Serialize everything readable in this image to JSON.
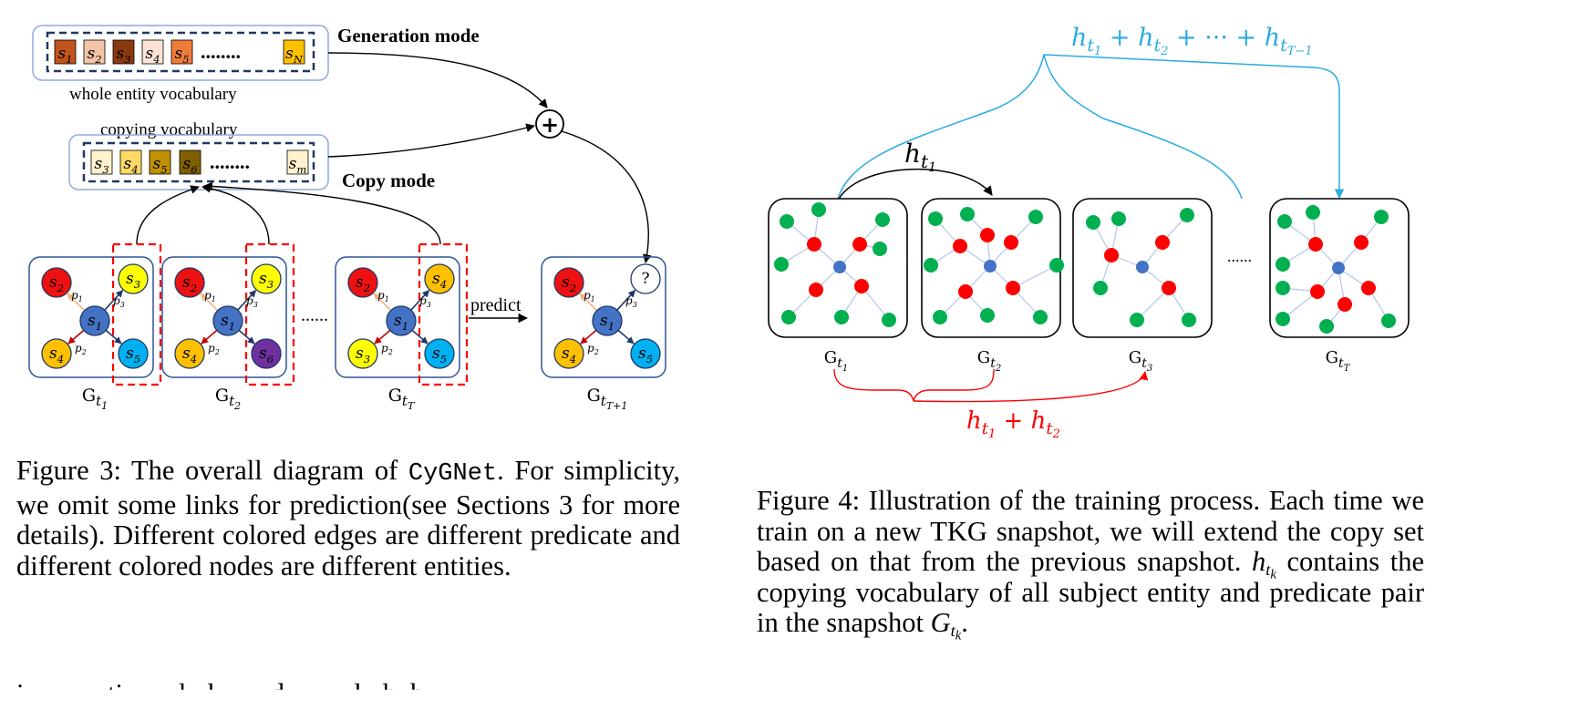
{
  "figure3": {
    "generation_mode": "Generation mode",
    "copy_mode": "Copy mode",
    "whole_vocab": "whole entity vocabulary",
    "copy_vocab": "copying vocabulary",
    "gen_tokens": [
      "s1",
      "s2",
      "s3",
      "s4",
      "s5",
      "sN"
    ],
    "gen_colors": [
      "#c0541c",
      "#f4c4a6",
      "#8a3a10",
      "#fbe4d5",
      "#ee7c3a",
      "#ffc000"
    ],
    "copy_tokens": [
      "s3",
      "s4",
      "s5",
      "s6",
      "sm"
    ],
    "copy_colors": [
      "#fff2cc",
      "#ffd966",
      "#bf9000",
      "#7f6000",
      "#fff2cc"
    ],
    "dots": "........",
    "plus": "+",
    "predict": "predict",
    "ellipsis": "......",
    "question": "?",
    "snapshots": [
      {
        "label": "G",
        "sub": "t1",
        "top": "s2",
        "right": "s3",
        "bl": "s4",
        "br": "s5",
        "top_color": "#ee1111",
        "right_color": "#ffff00",
        "bl_color": "#ffc000",
        "br_color": "#00b0f0"
      },
      {
        "label": "G",
        "sub": "t2",
        "top": "s2",
        "right": "s3",
        "bl": "s4",
        "br": "s6",
        "top_color": "#ee1111",
        "right_color": "#ffff00",
        "bl_color": "#ffc000",
        "br_color": "#7030a0"
      },
      {
        "label": "G",
        "sub": "tT",
        "top": "s2",
        "right": "s4",
        "bl": "s3",
        "br": "s5",
        "top_color": "#ee1111",
        "right_color": "#ffc000",
        "bl_color": "#ffff00",
        "br_color": "#00b0f0"
      },
      {
        "label": "G",
        "sub": "tT+1",
        "top": "s2",
        "right": "?",
        "bl": "s4",
        "br": "s5",
        "top_color": "#ee1111",
        "right_color": "#ffffff",
        "bl_color": "#ffc000",
        "br_color": "#00b0f0"
      }
    ],
    "center_node": "s1",
    "pred_labels": [
      "p1",
      "p3",
      "p2"
    ],
    "caption_prefix": "Figure 3: The overall diagram of ",
    "caption_mono": "CyGNet",
    "caption_rest": ". For simplicity, we omit some links for prediction(see Sections 3 for more details). Different colored edges are different predicate and different colored nodes are different entities."
  },
  "figure4": {
    "top_sum": "h_t1 + h_t2 + ··· + h_tT−1",
    "top_sum_parts": [
      "h",
      "t",
      "1",
      " + ",
      "h",
      "t",
      "2",
      " + ··· + ",
      "h",
      "t",
      "T−1"
    ],
    "h_t1": "h_t1",
    "bottom_sum": "h_t1 + h_t2",
    "ellipsis": "......",
    "snapshots": [
      {
        "label": "G",
        "sub": "t1"
      },
      {
        "label": "G",
        "sub": "t2"
      },
      {
        "label": "G",
        "sub": "t3"
      },
      {
        "label": "G",
        "sub": "tT"
      }
    ],
    "colors": {
      "entity": "#00b050",
      "subject": "#ff0000",
      "center": "#4472c4",
      "edge": "#b4c7e7",
      "top_brace": "#29abe2",
      "bottom_brace": "#ff0000"
    },
    "caption_lines": [
      "Figure 4: Illustration of the training process. Each time we",
      "train on a new TKG snapshot, we will extend the copy set",
      "based on that from the previous snapshot. ",
      " contains the",
      "copying vocabulary of all subject entity and predicate pair in",
      "the snapshot "
    ]
  },
  "bottom_fragment": "i            ti        l   l        d          l   h  b"
}
